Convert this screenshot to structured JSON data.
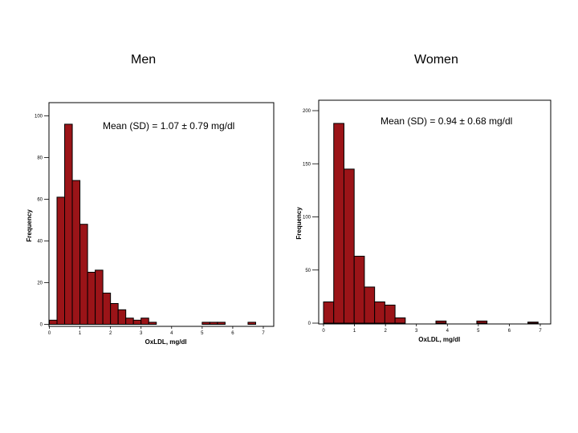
{
  "panels": {
    "men_title": "Men",
    "women_title": "Women"
  },
  "chart_data": [
    {
      "type": "bar",
      "title": "Men",
      "annotation": "Mean (SD) = 1.07 ± 0.79 mg/dl",
      "xlabel": "OxLDL, mg/dl",
      "ylabel": "Frequency",
      "xlim": [
        0,
        7
      ],
      "ylim": [
        0,
        100
      ],
      "xticks": [
        "0",
        "1",
        "2",
        "3",
        "4",
        "5",
        "6",
        "7"
      ],
      "yticks": [
        "0",
        "20",
        "40",
        "60",
        "80",
        "100"
      ],
      "bin_width": 0.25,
      "x": [
        0.125,
        0.375,
        0.625,
        0.875,
        1.125,
        1.375,
        1.625,
        1.875,
        2.125,
        2.375,
        2.625,
        2.875,
        3.125,
        3.375,
        5.125,
        5.375,
        5.625,
        6.625
      ],
      "values": [
        2,
        61,
        96,
        69,
        48,
        25,
        26,
        15,
        10,
        7,
        3,
        2,
        3,
        1,
        1,
        1,
        1,
        1
      ],
      "bar_color": "#9b1418",
      "grid": false
    },
    {
      "type": "bar",
      "title": "Women",
      "annotation": "Mean (SD) = 0.94 ± 0.68 mg/dl",
      "xlabel": "OxLDL, mg/dl",
      "ylabel": "Frequency",
      "xlim": [
        0,
        7
      ],
      "ylim": [
        0,
        200
      ],
      "xticks": [
        "0",
        "1",
        "2",
        "3",
        "4",
        "5",
        "6",
        "7"
      ],
      "yticks": [
        "0",
        "50",
        "100",
        "150",
        "200"
      ],
      "bin_width": 0.33,
      "x": [
        0.165,
        0.495,
        0.825,
        1.155,
        1.485,
        1.815,
        2.145,
        2.475,
        3.795,
        5.115,
        6.765
      ],
      "values": [
        20,
        188,
        145,
        63,
        34,
        20,
        17,
        5,
        2,
        2,
        1
      ],
      "bar_color": "#9b1418",
      "grid": false
    }
  ]
}
